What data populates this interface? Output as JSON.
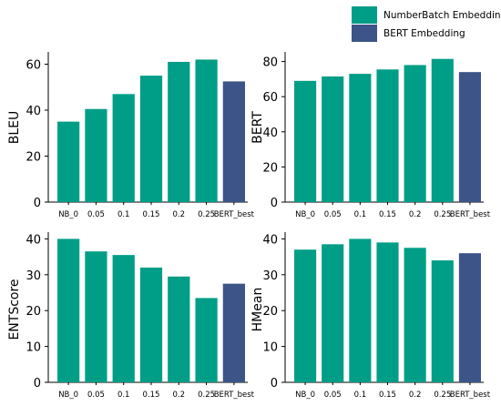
{
  "legend": {
    "entries": [
      {
        "label": "NumberBatch Embedding",
        "color": "#009e86"
      },
      {
        "label": "BERT Embedding",
        "color": "#3c5488"
      }
    ]
  },
  "chart_data": [
    {
      "type": "bar",
      "categories": [
        "NB_0",
        "0.05",
        "0.1",
        "0.15",
        "0.2",
        "0.25",
        "BERT_best"
      ],
      "values": [
        35,
        40.5,
        47,
        55,
        61,
        62,
        52.5
      ],
      "colors": [
        "#009e86",
        "#009e86",
        "#009e86",
        "#009e86",
        "#009e86",
        "#009e86",
        "#3c5488"
      ],
      "ylabel": "BLEU",
      "ylim": [
        0,
        65
      ],
      "yticks": [
        0,
        20,
        40,
        60
      ],
      "grid": false
    },
    {
      "type": "bar",
      "categories": [
        "NB_0",
        "0.05",
        "0.1",
        "0.15",
        "0.2",
        "0.25",
        "BERT_best"
      ],
      "values": [
        69,
        71.5,
        73,
        75.5,
        78,
        81.5,
        74
      ],
      "colors": [
        "#009e86",
        "#009e86",
        "#009e86",
        "#009e86",
        "#009e86",
        "#009e86",
        "#3c5488"
      ],
      "ylabel": "BERT",
      "ylim": [
        0,
        85
      ],
      "yticks": [
        0,
        20,
        40,
        60,
        80
      ],
      "grid": false
    },
    {
      "type": "bar",
      "categories": [
        "NB_0",
        "0.05",
        "0.1",
        "0.15",
        "0.2",
        "0.25",
        "BERT_best"
      ],
      "values": [
        40,
        36.5,
        35.5,
        32,
        29.5,
        23.5,
        27.5
      ],
      "colors": [
        "#009e86",
        "#009e86",
        "#009e86",
        "#009e86",
        "#009e86",
        "#009e86",
        "#3c5488"
      ],
      "ylabel": "ENTScore",
      "ylim": [
        0,
        42
      ],
      "yticks": [
        0,
        10,
        20,
        30,
        40
      ],
      "grid": false
    },
    {
      "type": "bar",
      "categories": [
        "NB_0",
        "0.05",
        "0.1",
        "0.15",
        "0.2",
        "0.25",
        "BERT_best"
      ],
      "values": [
        37,
        38.5,
        40,
        39,
        37.5,
        34,
        36
      ],
      "colors": [
        "#009e86",
        "#009e86",
        "#009e86",
        "#009e86",
        "#009e86",
        "#009e86",
        "#3c5488"
      ],
      "ylabel": "HMean",
      "ylim": [
        0,
        42
      ],
      "yticks": [
        0,
        10,
        20,
        30,
        40
      ],
      "grid": false
    }
  ]
}
